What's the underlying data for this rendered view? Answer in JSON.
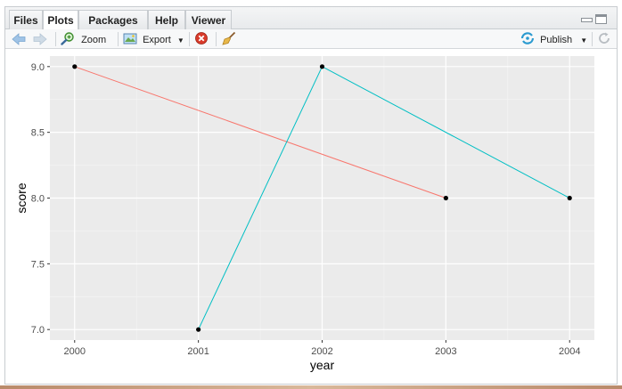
{
  "tabs": [
    "Files",
    "Plots",
    "Packages",
    "Help",
    "Viewer"
  ],
  "active_tab": "Plots",
  "toolbar": {
    "zoom_label": "Zoom",
    "export_label": "Export",
    "publish_label": "Publish"
  },
  "icons": {
    "back": "back-arrow-icon",
    "forward": "forward-arrow-icon",
    "zoom": "zoom-icon",
    "export": "export-icon",
    "remove": "remove-plot-icon",
    "clear": "broom-icon",
    "publish": "publish-icon",
    "refresh": "refresh-icon"
  },
  "chart_data": {
    "type": "line",
    "xlabel": "year",
    "ylabel": "score",
    "xlim": [
      2000,
      2004
    ],
    "ylim": [
      6.92,
      9.08
    ],
    "x_ticks": [
      2000,
      2001,
      2002,
      2003,
      2004
    ],
    "y_ticks": [
      7.0,
      7.5,
      8.0,
      8.5,
      9.0
    ],
    "grid": true,
    "background": "#ebebeb",
    "series": [
      {
        "color": "#f8766d",
        "points": [
          [
            2000,
            9.0
          ],
          [
            2003,
            8.0
          ]
        ]
      },
      {
        "color": "#00bfc4",
        "points": [
          [
            2001,
            7.0
          ],
          [
            2002,
            9.0
          ],
          [
            2004,
            8.0
          ]
        ]
      }
    ]
  }
}
